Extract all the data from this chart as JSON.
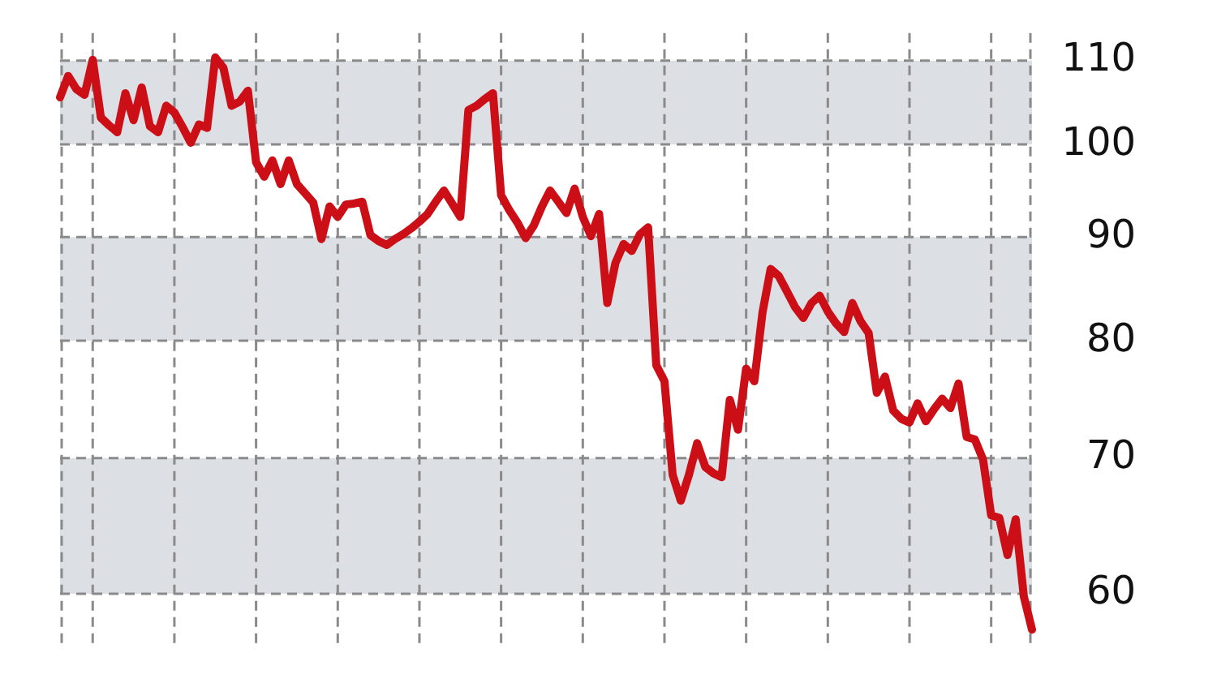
{
  "chart_data": {
    "type": "line",
    "log": true,
    "grid": true,
    "tick_labels": "y",
    "legend": false,
    "categories": [
      null,
      null,
      null,
      null,
      null,
      null,
      null,
      null,
      null,
      null,
      null,
      null,
      null,
      null,
      null,
      null,
      null,
      null,
      null,
      null,
      null,
      null,
      null,
      null,
      null,
      null,
      null,
      null,
      null,
      null,
      null,
      null,
      null,
      null,
      null,
      null,
      null,
      null,
      null,
      null,
      null,
      null,
      null,
      null,
      null,
      null,
      null,
      null,
      null,
      null,
      null,
      null,
      null,
      null,
      null,
      null,
      null,
      null,
      null,
      null,
      null,
      null,
      null,
      null,
      null,
      null,
      null,
      null,
      null,
      null,
      null,
      null,
      null,
      null,
      null,
      null,
      null,
      null,
      null,
      null,
      null,
      null,
      null,
      null,
      null,
      null,
      null,
      null,
      null,
      null,
      null,
      null,
      null,
      null,
      null,
      null,
      null,
      null,
      null,
      null,
      null,
      null,
      null,
      null,
      null,
      null,
      null,
      null,
      null,
      null,
      null,
      null,
      null,
      null,
      null,
      null,
      null,
      null,
      null,
      null
    ],
    "ylim": [
      56.6,
      113.5
    ],
    "yticks": [
      60,
      70,
      80,
      90,
      100,
      110
    ],
    "bands": [
      {
        "axis": "y",
        "from": 100,
        "to": 110,
        "color": "#dcdfe3"
      },
      {
        "axis": "y",
        "from": 80,
        "to": 90,
        "color": "#dcdfe3"
      },
      {
        "axis": "y",
        "from": 60,
        "to": 70,
        "color": "#dcdfe3"
      }
    ],
    "series": [
      {
        "color": "#cc0e16",
        "line_style": "solid",
        "marker": "none",
        "values": [
          105.5,
          108.1,
          106.5,
          105.8,
          110.1,
          103.1,
          102.2,
          101.4,
          106.0,
          102.8,
          106.7,
          102.1,
          101.4,
          104.5,
          103.7,
          102.0,
          100.2,
          102.3,
          101.9,
          110.4,
          109.1,
          104.5,
          105.0,
          106.3,
          98.0,
          96.4,
          98.2,
          95.6,
          98.2,
          95.6,
          94.6,
          93.6,
          89.8,
          93.2,
          92.1,
          93.4,
          93.5,
          93.7,
          90.2,
          89.6,
          89.2,
          89.8,
          90.3,
          90.9,
          91.6,
          92.4,
          93.7,
          94.9,
          93.5,
          92.1,
          104.0,
          104.5,
          105.3,
          106.0,
          94.4,
          92.8,
          91.5,
          89.9,
          91.2,
          93.2,
          94.9,
          93.7,
          92.5,
          95.1,
          92.1,
          90.1,
          92.4,
          83.5,
          87.4,
          89.3,
          88.6,
          90.3,
          91.0,
          77.8,
          76.4,
          68.7,
          66.7,
          68.7,
          71.2,
          69.3,
          68.8,
          68.5,
          74.8,
          72.3,
          77.5,
          76.4,
          82.6,
          86.8,
          86.1,
          84.6,
          83.1,
          82.1,
          83.5,
          84.2,
          82.7,
          81.6,
          80.8,
          83.5,
          81.8,
          80.7,
          75.4,
          76.8,
          73.9,
          73.2,
          72.9,
          74.5,
          73.0,
          74.0,
          74.9,
          74.1,
          76.2,
          71.7,
          71.5,
          69.9,
          65.6,
          65.4,
          62.7,
          65.3,
          59.8,
          57.6
        ]
      }
    ]
  }
}
